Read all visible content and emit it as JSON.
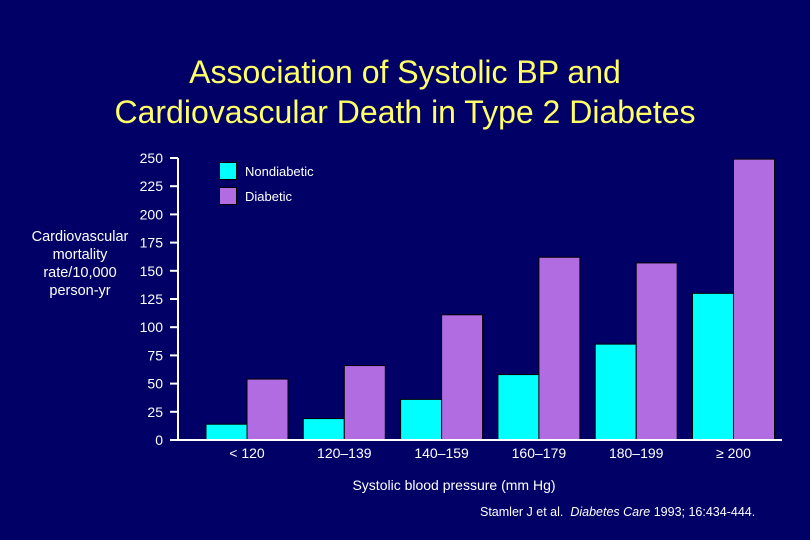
{
  "chart_data": {
    "type": "bar",
    "title_line1": "Association of Systolic BP and",
    "title_line2": "Cardiovascular Death in Type 2 Diabetes",
    "ylabel_lines": [
      "Cardiovascular",
      "mortality",
      "rate/10,000",
      "person-yr"
    ],
    "xlabel": "Systolic blood pressure (mm Hg)",
    "ylim": [
      0,
      250
    ],
    "yticks": [
      "0",
      "25",
      "50",
      "75",
      "100",
      "125",
      "150",
      "175",
      "200",
      "225",
      "250"
    ],
    "categories": [
      "< 120",
      "120–139",
      "140–159",
      "160–179",
      "180–199",
      "≥ 200"
    ],
    "series": [
      {
        "name": "Nondiabetic",
        "color": "#00ffff",
        "values": [
          14,
          19,
          36,
          58,
          85,
          130
        ]
      },
      {
        "name": "Diabetic",
        "color": "#b06ce0",
        "values": [
          54,
          66,
          111,
          162,
          157,
          249
        ]
      }
    ],
    "legend_position": "top-left",
    "grid": false
  },
  "citation": {
    "authors": "Stamler J et al.",
    "journal": "Diabetes Care",
    "details": "1993; 16:434-444."
  }
}
